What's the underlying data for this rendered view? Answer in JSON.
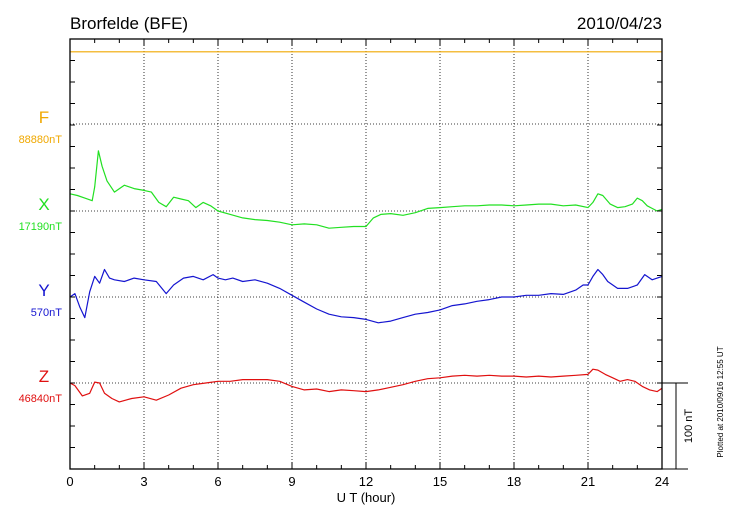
{
  "chart_data": {
    "type": "line",
    "title": "Brorfelde (BFE)",
    "date": "2010/04/23",
    "xlabel": "U T (hour)",
    "xlim": [
      0,
      24
    ],
    "xticks": [
      "0",
      "3",
      "6",
      "9",
      "12",
      "15",
      "18",
      "21",
      "24"
    ],
    "grid": true,
    "scale_bar": "100 nT",
    "plotted_note": "Plotted at 2010/09/16 12:55 UT",
    "y_unit_per_panel_nT": 520,
    "series": [
      {
        "name": "F",
        "baseline": "88880nT",
        "color": "#f0a800",
        "x": [
          0,
          24
        ],
        "y": [
          84,
          84
        ]
      },
      {
        "name": "X",
        "baseline": "17190nT",
        "color": "#22e022",
        "x": [
          0,
          0.3,
          0.6,
          0.9,
          1.0,
          1.15,
          1.3,
          1.5,
          1.8,
          2.2,
          2.6,
          3.0,
          3.3,
          3.6,
          3.9,
          4.2,
          4.5,
          4.8,
          5.1,
          5.4,
          5.7,
          6.0,
          6.5,
          7.0,
          7.5,
          8.0,
          8.5,
          9.0,
          9.5,
          10.0,
          10.5,
          11.0,
          11.5,
          12.0,
          12.3,
          12.6,
          13.0,
          13.5,
          14.0,
          14.5,
          15.0,
          15.5,
          16.0,
          16.5,
          17.0,
          17.5,
          18.0,
          18.5,
          19.0,
          19.5,
          20.0,
          20.5,
          21.0,
          21.2,
          21.4,
          21.6,
          21.9,
          22.2,
          22.5,
          22.8,
          23.0,
          23.2,
          23.4,
          23.6,
          23.8,
          24.0
        ],
        "y": [
          20,
          18,
          15,
          12,
          28,
          70,
          52,
          35,
          22,
          30,
          26,
          24,
          22,
          10,
          5,
          16,
          14,
          12,
          4,
          10,
          6,
          0,
          -4,
          -8,
          -10,
          -11,
          -13,
          -16,
          -15,
          -16,
          -20,
          -19,
          -18,
          -18,
          -8,
          -4,
          -3,
          -5,
          -2,
          3,
          4,
          5,
          6,
          6,
          7,
          7,
          6,
          7,
          8,
          8,
          6,
          7,
          4,
          10,
          20,
          18,
          8,
          4,
          5,
          8,
          15,
          12,
          6,
          3,
          0,
          2
        ]
      },
      {
        "name": "Y",
        "baseline": "570nT",
        "color": "#1515d0",
        "x": [
          0,
          0.2,
          0.4,
          0.6,
          0.8,
          1.0,
          1.2,
          1.4,
          1.6,
          1.8,
          2.2,
          2.6,
          3.0,
          3.5,
          3.9,
          4.2,
          4.6,
          5.0,
          5.4,
          5.8,
          6.0,
          6.3,
          6.6,
          7.0,
          7.5,
          8.0,
          8.5,
          9.0,
          9.5,
          10.0,
          10.5,
          11.0,
          11.5,
          12.0,
          12.5,
          13.0,
          13.5,
          14.0,
          14.5,
          15.0,
          15.5,
          16.0,
          16.5,
          17.0,
          17.5,
          18.0,
          18.5,
          19.0,
          19.5,
          20.0,
          20.5,
          20.8,
          21.0,
          21.2,
          21.4,
          21.6,
          21.8,
          22.2,
          22.6,
          23.0,
          23.3,
          23.6,
          24.0
        ],
        "y": [
          0,
          4,
          -12,
          -24,
          6,
          24,
          16,
          32,
          22,
          20,
          18,
          22,
          20,
          18,
          4,
          14,
          22,
          24,
          20,
          26,
          22,
          20,
          22,
          18,
          20,
          16,
          10,
          2,
          -6,
          -14,
          -20,
          -23,
          -24,
          -26,
          -30,
          -28,
          -24,
          -20,
          -18,
          -15,
          -10,
          -8,
          -5,
          -3,
          0,
          0,
          2,
          2,
          4,
          3,
          8,
          14,
          14,
          24,
          32,
          26,
          18,
          10,
          10,
          14,
          26,
          20,
          24
        ]
      },
      {
        "name": "Z",
        "baseline": "46840nT",
        "color": "#e01010",
        "x": [
          0,
          0.2,
          0.5,
          0.8,
          1.0,
          1.2,
          1.4,
          1.7,
          2.0,
          2.5,
          3.0,
          3.5,
          4.0,
          4.5,
          5.0,
          5.5,
          6.0,
          6.5,
          7.0,
          7.5,
          8.0,
          8.5,
          9.0,
          9.5,
          10.0,
          10.5,
          11.0,
          11.5,
          12.0,
          12.5,
          13.0,
          13.5,
          14.0,
          14.5,
          15.0,
          15.5,
          16.0,
          16.5,
          17.0,
          17.5,
          18.0,
          18.5,
          19.0,
          19.5,
          20.0,
          20.5,
          21.0,
          21.2,
          21.4,
          21.7,
          22.0,
          22.3,
          22.6,
          22.9,
          23.2,
          23.5,
          23.8,
          24.0
        ],
        "y": [
          0,
          -3,
          -15,
          -12,
          1,
          0,
          -12,
          -18,
          -22,
          -18,
          -16,
          -20,
          -14,
          -6,
          -2,
          0,
          2,
          2,
          4,
          4,
          4,
          2,
          -4,
          -8,
          -7,
          -10,
          -8,
          -9,
          -10,
          -8,
          -5,
          -2,
          2,
          5,
          6,
          8,
          9,
          8,
          9,
          8,
          8,
          7,
          8,
          7,
          8,
          9,
          10,
          16,
          15,
          10,
          6,
          2,
          4,
          2,
          -4,
          -8,
          -10,
          -6
        ]
      }
    ]
  }
}
